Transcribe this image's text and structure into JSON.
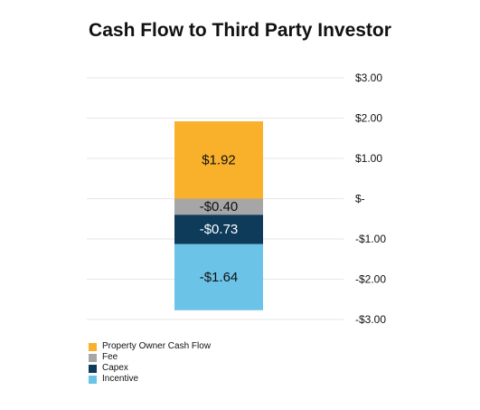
{
  "chart_data": {
    "type": "bar",
    "title": "Cash Flow to Third Party Investor",
    "xlabel": "",
    "ylabel": "",
    "ylim": [
      -3,
      3
    ],
    "y_ticks": [
      {
        "value": 3,
        "label": "$3.00"
      },
      {
        "value": 2,
        "label": "$2.00"
      },
      {
        "value": 1,
        "label": "$1.00"
      },
      {
        "value": 0,
        "label": "$-"
      },
      {
        "value": -1,
        "label": "-$1.00"
      },
      {
        "value": -2,
        "label": "-$2.00"
      },
      {
        "value": -3,
        "label": "-$3.00"
      }
    ],
    "stacked": true,
    "grid": true,
    "legend_position": "bottom-left",
    "series": [
      {
        "name": "Property Owner Cash Flow",
        "value": 1.92,
        "label": "$1.92",
        "color": "#F9B02B",
        "label_color": "#111111"
      },
      {
        "name": "Fee",
        "value": -0.4,
        "label": "-$0.40",
        "color": "#A6A6A6",
        "label_color": "#111111"
      },
      {
        "name": "Capex",
        "value": -0.73,
        "label": "-$0.73",
        "color": "#0E3B5A",
        "label_color": "#ffffff"
      },
      {
        "name": "Incentive",
        "value": -1.64,
        "label": "-$1.64",
        "color": "#6CC3E8",
        "label_color": "#111111"
      }
    ]
  }
}
